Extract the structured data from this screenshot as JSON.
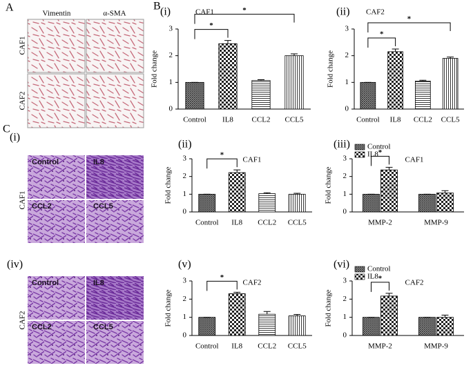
{
  "labels": [
    "A",
    "B",
    "C"
  ],
  "image_panels": [
    {
      "columns": [
        "Vimentin",
        "α-SMA"
      ],
      "rows": [
        "CAF1",
        "CAF2"
      ]
    },
    {
      "label": "(i)",
      "row": "CAF1",
      "cells": [
        "Control",
        "IL8",
        "CCL2",
        "CCL5"
      ]
    },
    {
      "label": "(iv)",
      "row": "CAF2",
      "cells": [
        "Control",
        "IL8",
        "CCL2",
        "CCL5"
      ]
    }
  ],
  "chart_data": [
    {
      "type": "bar",
      "label": "(i)",
      "title": "CAF1",
      "y_label": "Fold change",
      "categories": [
        "Control",
        "IL8",
        "CCL2",
        "CCL5"
      ],
      "values": [
        1,
        2.45,
        1.07,
        2.0
      ],
      "errors": [
        0,
        0.12,
        0.03,
        0.07
      ],
      "patterns": [
        "dense",
        "checker",
        "horizontal",
        "vertical"
      ],
      "ylim": [
        0,
        3
      ],
      "yticks": [
        0,
        1,
        2,
        3
      ],
      "annotations": [
        {
          "text": "*",
          "from": 0,
          "to": 1
        },
        {
          "text": "*",
          "from": 0,
          "to": 3
        }
      ]
    },
    {
      "type": "bar",
      "label": "(ii)",
      "title": "CAF2",
      "y_label": "Fold change",
      "categories": [
        "Control",
        "IL8",
        "CCL2",
        "CCL5"
      ],
      "values": [
        1,
        2.15,
        1.05,
        1.9
      ],
      "errors": [
        0,
        0.1,
        0.03,
        0.05
      ],
      "patterns": [
        "dense",
        "checker",
        "horizontal",
        "vertical"
      ],
      "ylim": [
        0,
        3
      ],
      "yticks": [
        0,
        1,
        2,
        3
      ],
      "annotations": [
        {
          "text": "*",
          "from": 0,
          "to": 1
        },
        {
          "text": "*",
          "from": 0,
          "to": 3
        }
      ]
    },
    {
      "type": "bar",
      "label": "(ii)",
      "title": "CAF1",
      "y_label": "Fold change",
      "categories": [
        "Control",
        "IL8",
        "CCL2",
        "CCL5"
      ],
      "values": [
        1,
        2.22,
        1.03,
        1.0
      ],
      "errors": [
        0,
        0.15,
        0.05,
        0.05
      ],
      "patterns": [
        "dense",
        "checker",
        "horizontal",
        "vertical"
      ],
      "ylim": [
        0,
        3
      ],
      "yticks": [
        0,
        1,
        2,
        3
      ],
      "annotations": [
        {
          "text": "*",
          "from": 0,
          "to": 1
        }
      ]
    },
    {
      "type": "grouped_bar",
      "label": "(iii)",
      "title": "CAF1",
      "y_label": "Fold change",
      "categories": [
        "MMP-2",
        "MMP-9"
      ],
      "legend": "upper left",
      "series": [
        {
          "name": "Control",
          "pattern": "dense",
          "values": [
            1,
            1
          ],
          "errors": [
            0,
            0
          ]
        },
        {
          "name": "IL8",
          "pattern": "checker",
          "values": [
            2.37,
            1.07
          ],
          "errors": [
            0.15,
            0.13
          ]
        }
      ],
      "ylim": [
        0,
        3
      ],
      "yticks": [
        0,
        1,
        2,
        3
      ],
      "annotations": [
        {
          "text": "*",
          "category": 0,
          "from": 0,
          "to": 1
        }
      ]
    },
    {
      "type": "bar",
      "label": "(v)",
      "title": "CAF2",
      "y_label": "Fold change",
      "categories": [
        "Control",
        "IL8",
        "CCL2",
        "CCL5"
      ],
      "values": [
        1,
        2.3,
        1.17,
        1.08
      ],
      "errors": [
        0,
        0.08,
        0.15,
        0.08
      ],
      "patterns": [
        "dense",
        "checker",
        "horizontal",
        "vertical"
      ],
      "ylim": [
        0,
        3
      ],
      "yticks": [
        0,
        1,
        2,
        3
      ],
      "annotations": [
        {
          "text": "*",
          "from": 0,
          "to": 1
        }
      ]
    },
    {
      "type": "grouped_bar",
      "label": "(vi)",
      "title": "CAF2",
      "y_label": "Fold change",
      "categories": [
        "MMP-2",
        "MMP-9"
      ],
      "legend": "upper left",
      "series": [
        {
          "name": "Control",
          "pattern": "dense",
          "values": [
            1,
            1
          ],
          "errors": [
            0,
            0
          ]
        },
        {
          "name": "IL8",
          "pattern": "checker",
          "values": [
            2.17,
            1.0
          ],
          "errors": [
            0.15,
            0.12
          ]
        }
      ],
      "ylim": [
        0,
        3
      ],
      "yticks": [
        0,
        1,
        2,
        3
      ],
      "annotations": [
        {
          "text": "*",
          "category": 0,
          "from": 0,
          "to": 1
        }
      ]
    }
  ]
}
